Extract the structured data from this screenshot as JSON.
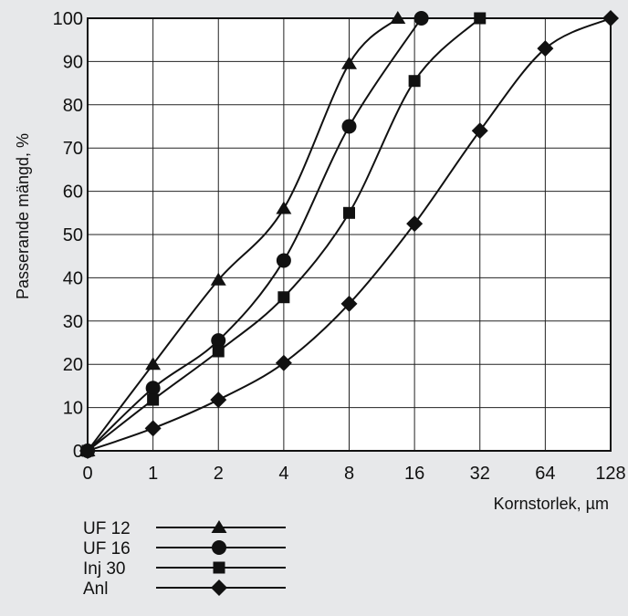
{
  "chart_data": {
    "type": "line",
    "title": "",
    "xlabel": "Kornstorlek, µm",
    "ylabel": "Passerande mängd, %",
    "x_tick_labels": [
      "0",
      "1",
      "2",
      "4",
      "8",
      "16",
      "32",
      "64",
      "128"
    ],
    "x_tick_values": [
      0,
      1,
      2,
      4,
      8,
      16,
      32,
      64,
      128
    ],
    "y_tick_labels": [
      "0",
      "10",
      "20",
      "30",
      "40",
      "50",
      "60",
      "70",
      "80",
      "90",
      "100"
    ],
    "ylim": [
      0,
      100
    ],
    "grid": true,
    "legend_position": "bottom-left",
    "series": [
      {
        "name": "UF 12",
        "marker": "triangle",
        "points": [
          [
            0,
            0
          ],
          [
            1,
            20
          ],
          [
            2,
            39.5
          ],
          [
            4,
            56
          ],
          [
            8,
            89.5
          ],
          [
            13.4,
            100
          ]
        ]
      },
      {
        "name": "UF 16",
        "marker": "circle",
        "points": [
          [
            0,
            0
          ],
          [
            1,
            14.5
          ],
          [
            2,
            25.5
          ],
          [
            4,
            44
          ],
          [
            8,
            75
          ],
          [
            17.2,
            100
          ]
        ]
      },
      {
        "name": "Inj 30",
        "marker": "square",
        "points": [
          [
            0,
            0
          ],
          [
            1,
            11.8
          ],
          [
            2,
            23
          ],
          [
            4,
            35.5
          ],
          [
            8,
            55
          ],
          [
            16,
            85.5
          ],
          [
            32,
            100
          ]
        ]
      },
      {
        "name": "Anl",
        "marker": "diamond",
        "points": [
          [
            0,
            0
          ],
          [
            1,
            5.2
          ],
          [
            2,
            11.8
          ],
          [
            4,
            20.3
          ],
          [
            8,
            34
          ],
          [
            16,
            52.5
          ],
          [
            32,
            74
          ],
          [
            64,
            93
          ],
          [
            128,
            100
          ]
        ]
      }
    ]
  }
}
